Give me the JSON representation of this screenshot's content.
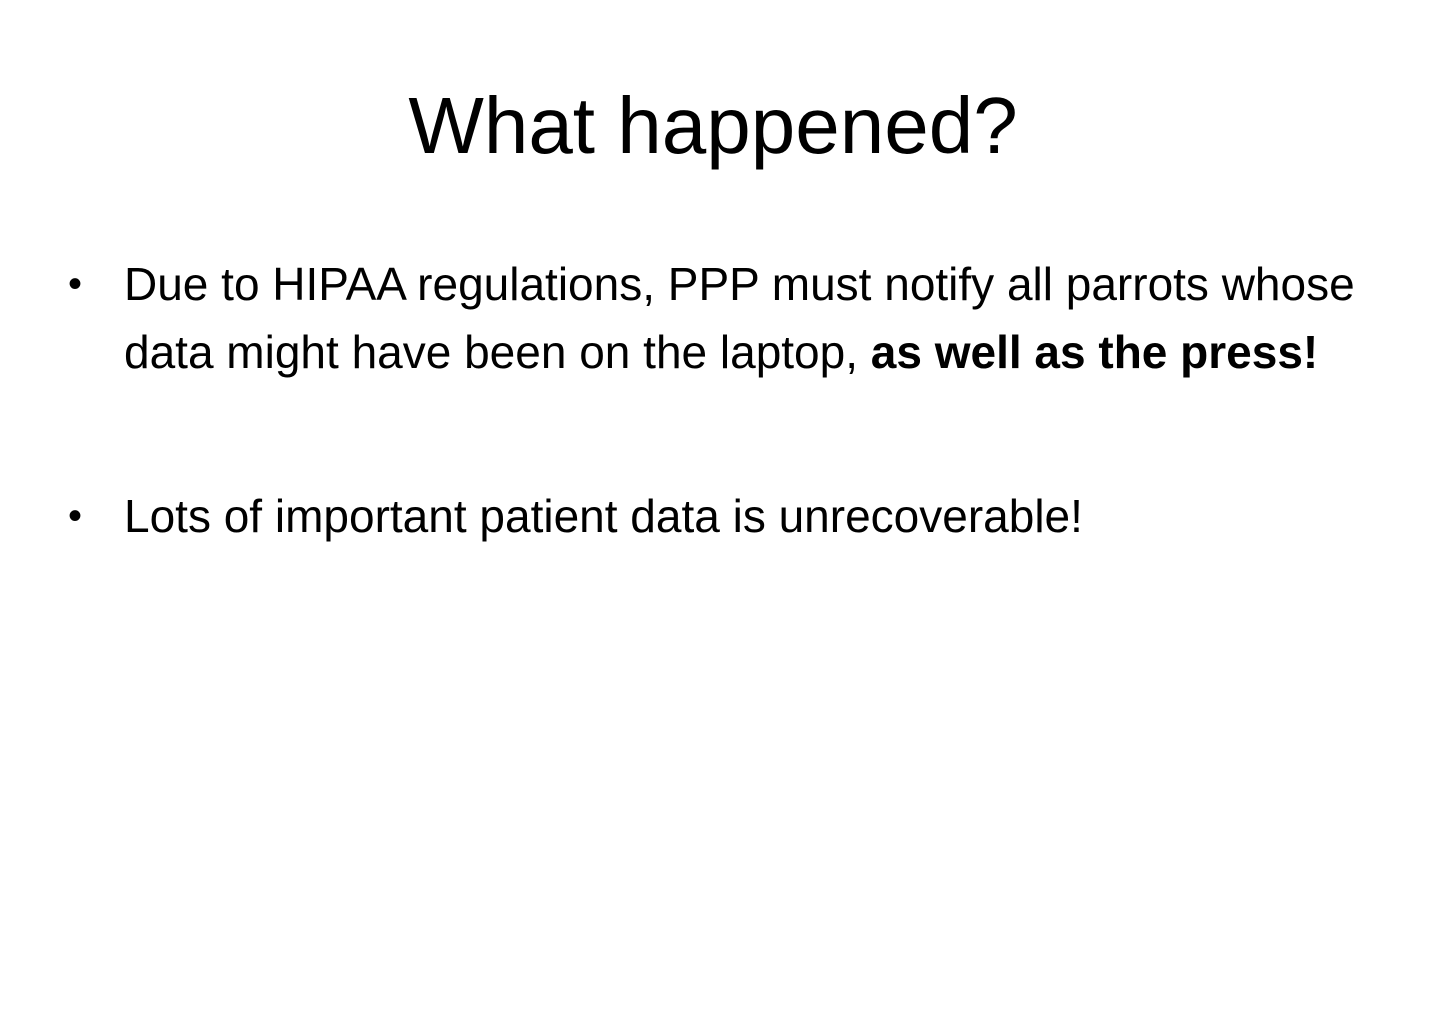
{
  "slide": {
    "title": "What happened?",
    "bullets": [
      {
        "text": "Due to HIPAA regulations, PPP must notify all parrots whose data might have been on the laptop, ",
        "emphasis": "as well as the press!"
      },
      {
        "text": "Lots of important patient data is unrecoverable!"
      }
    ],
    "bullet_symbol": "•"
  }
}
